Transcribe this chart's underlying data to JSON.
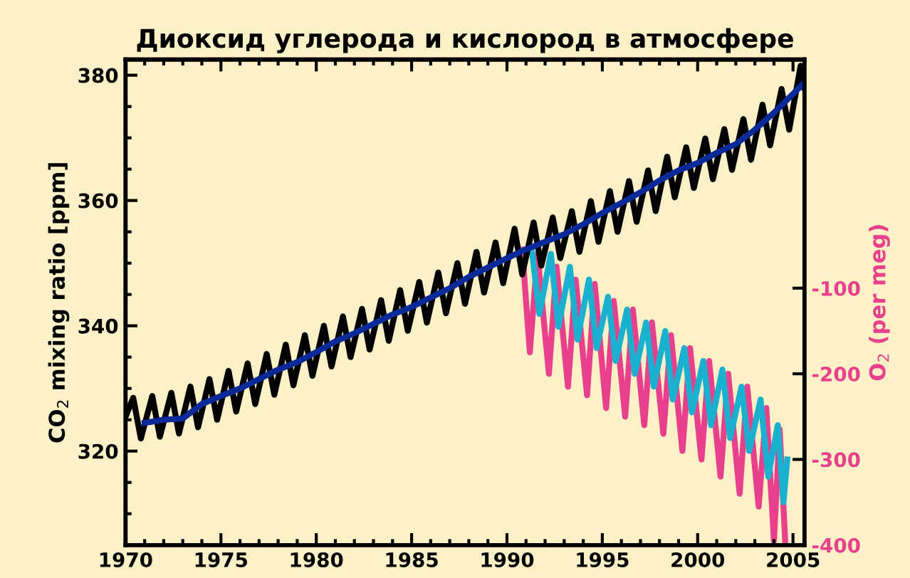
{
  "chart_data": {
    "type": "line",
    "title": "Диоксид углерода и кислород в атмосфере",
    "ylabel": "CO$_{2}$ mixing ratio [ppm]",
    "y2label": "O$_{2}$ (per meg)",
    "xlim": [
      1970,
      2005.6
    ],
    "xticks": [
      1970,
      1975,
      1980,
      1985,
      1990,
      1995,
      2000,
      2005
    ],
    "ylim": [
      305,
      382.5
    ],
    "yticks": [
      320,
      340,
      360,
      380
    ],
    "y2lim": [
      -400,
      167
    ],
    "y2ticks": [
      -100,
      -200,
      -300,
      -400
    ],
    "grid": false,
    "legend": false,
    "marker": "none",
    "line_style": "solid",
    "series": [
      {
        "color": "#000000",
        "x": [
          1970.0,
          1970.4,
          1970.8,
          1971.4,
          1971.8,
          1972.4,
          1972.8,
          1973.4,
          1973.8,
          1974.4,
          1974.8,
          1975.4,
          1975.8,
          1976.4,
          1976.8,
          1977.4,
          1977.8,
          1978.4,
          1978.8,
          1979.4,
          1979.8,
          1980.4,
          1980.8,
          1981.4,
          1981.8,
          1982.4,
          1982.8,
          1983.4,
          1983.8,
          1984.4,
          1984.8,
          1985.4,
          1985.8,
          1986.4,
          1986.8,
          1987.4,
          1987.8,
          1988.4,
          1988.8,
          1989.4,
          1989.8,
          1990.4,
          1990.8,
          1991.4,
          1991.8,
          1992.4,
          1992.8,
          1993.4,
          1993.8,
          1994.4,
          1994.8,
          1995.4,
          1995.8,
          1996.4,
          1996.8,
          1997.4,
          1997.8,
          1998.4,
          1998.8,
          1999.4,
          1999.8,
          2000.4,
          2000.8,
          2001.4,
          2001.8,
          2002.4,
          2002.8,
          2003.4,
          2003.8,
          2004.4,
          2004.8,
          2005.4,
          2005.6
        ],
        "values": [
          325.5,
          328.5,
          322.0,
          328.8,
          322.3,
          329.3,
          322.8,
          330.3,
          323.8,
          331.5,
          325.0,
          332.8,
          326.3,
          334.0,
          327.5,
          335.5,
          329.0,
          337.0,
          330.5,
          338.5,
          332.0,
          340.0,
          333.5,
          341.5,
          335.0,
          342.7,
          336.2,
          344.1,
          337.6,
          345.7,
          339.2,
          347.0,
          340.5,
          348.5,
          342.0,
          350.0,
          343.5,
          351.8,
          345.3,
          353.3,
          346.8,
          355.5,
          348.2,
          356.5,
          349.6,
          357.3,
          350.8,
          358.3,
          351.8,
          359.9,
          353.4,
          361.5,
          355.0,
          363.1,
          356.6,
          364.8,
          358.3,
          367.0,
          360.5,
          368.5,
          362.0,
          369.9,
          363.4,
          371.4,
          364.9,
          373.0,
          366.5,
          375.3,
          368.8,
          377.8,
          371.3,
          381.5,
          378.0
        ]
      },
      {
        "color": "#0a2a9a",
        "x": [
          1971,
          1972,
          1973,
          1974,
          1975,
          1976,
          1977,
          1978,
          1979,
          1980,
          1981,
          1982,
          1983,
          1984,
          1985,
          1986,
          1987,
          1988,
          1989,
          1990,
          1991,
          1992,
          1993,
          1994,
          1995,
          1996,
          1997,
          1998,
          1999,
          2000,
          2001,
          2002,
          2003,
          2004,
          2005,
          2005.6
        ],
        "values": [
          324.5,
          325.0,
          325.2,
          327.5,
          328.8,
          330.0,
          331.5,
          333.0,
          334.2,
          335.8,
          337.5,
          338.8,
          340.3,
          341.8,
          343.0,
          344.5,
          346.0,
          347.8,
          349.3,
          350.8,
          352.2,
          353.4,
          354.6,
          356.2,
          358.0,
          359.6,
          361.3,
          363.2,
          364.8,
          366.0,
          367.6,
          369.0,
          371.3,
          374.0,
          377.0,
          378.8
        ]
      },
      {
        "color": "#e8408c",
        "axis": "y2",
        "x": [
          1990.8,
          1991.2,
          1991.6,
          1992.2,
          1992.6,
          1993.2,
          1993.6,
          1994.2,
          1994.6,
          1995.2,
          1995.6,
          1996.2,
          1996.6,
          1997.2,
          1997.6,
          1998.2,
          1998.6,
          1999.2,
          1999.6,
          2000.2,
          2000.6,
          2001.2,
          2001.6,
          2002.2,
          2002.6,
          2003.2,
          2003.6,
          2004.0,
          2004.3,
          2004.6
        ],
        "values": [
          -55,
          -175,
          -60,
          -200,
          -75,
          -215,
          -90,
          -225,
          -95,
          -240,
          -115,
          -250,
          -125,
          -260,
          -140,
          -270,
          -155,
          -290,
          -170,
          -300,
          -185,
          -320,
          -200,
          -340,
          -215,
          -355,
          -240,
          -395,
          -265,
          -400
        ]
      },
      {
        "color": "#1ab0d0",
        "axis": "y2",
        "x": [
          1991.3,
          1991.7,
          1992.3,
          1992.7,
          1993.3,
          1993.7,
          1994.3,
          1994.7,
          1995.3,
          1995.7,
          1996.3,
          1996.7,
          1997.3,
          1997.7,
          1998.3,
          1998.7,
          1999.3,
          1999.7,
          2000.3,
          2000.7,
          2001.3,
          2001.7,
          2002.3,
          2002.7,
          2003.3,
          2003.7,
          2004.2,
          2004.5,
          2004.7
        ],
        "values": [
          -55,
          -130,
          -60,
          -145,
          -75,
          -160,
          -90,
          -170,
          -110,
          -185,
          -125,
          -200,
          -140,
          -215,
          -150,
          -230,
          -170,
          -245,
          -185,
          -260,
          -195,
          -275,
          -215,
          -290,
          -230,
          -320,
          -260,
          -350,
          -300
        ]
      }
    ]
  }
}
